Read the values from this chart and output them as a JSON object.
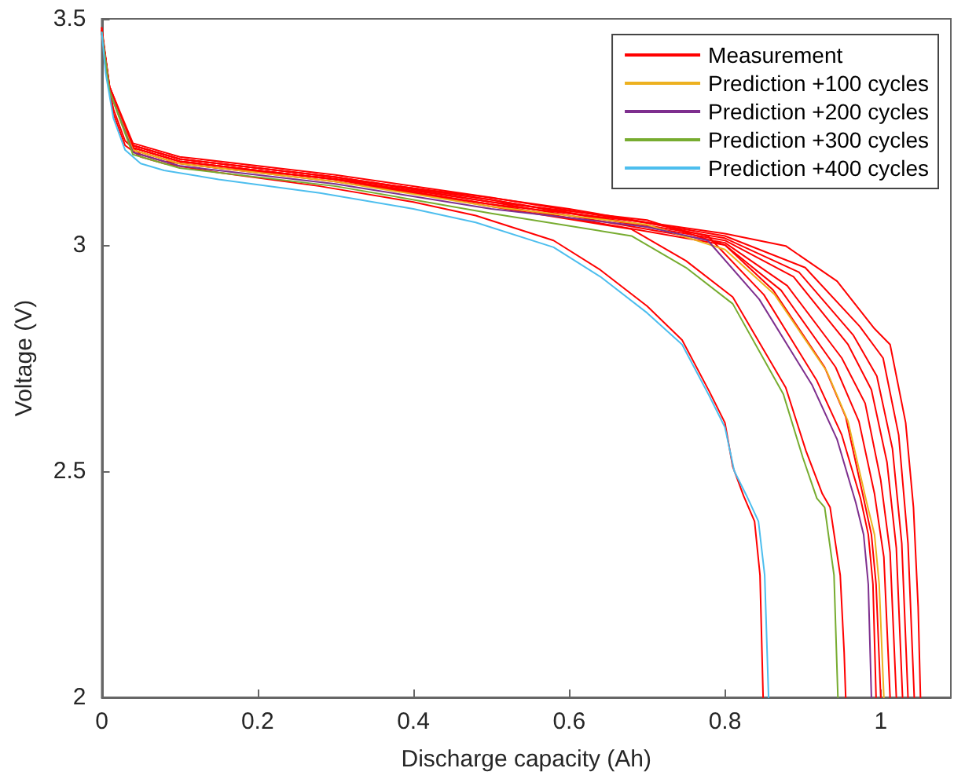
{
  "chart_data": {
    "type": "line",
    "xlabel": "Discharge capacity (Ah)",
    "ylabel": "Voltage (V)",
    "xlim": [
      0,
      1.09
    ],
    "ylim": [
      2,
      3.5
    ],
    "xticks": [
      0,
      0.2,
      0.4,
      0.6,
      0.8,
      1
    ],
    "yticks": [
      2,
      2.5,
      3,
      3.5
    ],
    "grid": false,
    "legend": "top right",
    "marker": "none",
    "line_style": "solid",
    "series": [
      {
        "name": "Measurement",
        "color": "#ff0000",
        "x": [
          0,
          0.005,
          0.015,
          0.03,
          0.05,
          0.08,
          0.15,
          0.28,
          0.4,
          0.48,
          0.58,
          0.64,
          0.7,
          0.745,
          0.78,
          0.8,
          0.81,
          0.824,
          0.838,
          0.845,
          0.849
        ],
        "values": [
          3.47,
          3.39,
          3.29,
          3.22,
          3.195,
          3.18,
          3.16,
          3.13,
          3.095,
          3.065,
          3.01,
          2.945,
          2.865,
          2.79,
          2.676,
          2.607,
          2.51,
          2.445,
          2.389,
          2.27,
          2.0
        ]
      },
      {
        "color": "#ff0000",
        "x": [
          0,
          0.01,
          0.04,
          0.1,
          0.3,
          0.5,
          0.68,
          0.75,
          0.81,
          0.878,
          0.904,
          0.925,
          0.935,
          0.948,
          0.953,
          0.955
        ],
        "values": [
          3.47,
          3.35,
          3.215,
          3.185,
          3.145,
          3.085,
          3.035,
          2.965,
          2.885,
          2.685,
          2.545,
          2.45,
          2.42,
          2.27,
          2.1,
          2.0
        ]
      },
      {
        "color": "#ff0000",
        "x": [
          0,
          0.01,
          0.04,
          0.1,
          0.3,
          0.5,
          0.7,
          0.778,
          0.85,
          0.918,
          0.95,
          0.974,
          0.984,
          0.99,
          0.994
        ],
        "values": [
          3.47,
          3.35,
          3.215,
          3.185,
          3.145,
          3.09,
          3.05,
          3.02,
          2.89,
          2.7,
          2.58,
          2.44,
          2.36,
          2.25,
          2.0
        ]
      },
      {
        "color": "#ff0000",
        "x": [
          0,
          0.01,
          0.04,
          0.1,
          0.3,
          0.5,
          0.7,
          0.8,
          0.862,
          0.928,
          0.955,
          0.978,
          0.988,
          0.994,
          1.0
        ],
        "values": [
          3.475,
          3.345,
          3.22,
          3.19,
          3.15,
          3.095,
          3.055,
          3.0,
          2.9,
          2.73,
          2.62,
          2.44,
          2.36,
          2.25,
          2.0
        ]
      },
      {
        "color": "#ff0000",
        "x": [
          0,
          0.01,
          0.04,
          0.1,
          0.3,
          0.5,
          0.8,
          0.872,
          0.942,
          0.972,
          0.992,
          1.004,
          1.012
        ],
        "values": [
          3.47,
          3.34,
          3.21,
          3.18,
          3.14,
          3.09,
          3.0,
          2.9,
          2.73,
          2.61,
          2.45,
          2.31,
          2.0
        ]
      },
      {
        "color": "#ff0000",
        "x": [
          0,
          0.01,
          0.04,
          0.1,
          0.3,
          0.5,
          0.8,
          0.88,
          0.95,
          0.98,
          1.0,
          1.012,
          1.02
        ],
        "values": [
          3.47,
          3.34,
          3.215,
          3.185,
          3.145,
          3.095,
          3.005,
          2.91,
          2.75,
          2.65,
          2.48,
          2.32,
          2.0
        ]
      },
      {
        "color": "#ff0000",
        "x": [
          0,
          0.01,
          0.04,
          0.1,
          0.3,
          0.5,
          0.8,
          0.888,
          0.958,
          0.988,
          1.008,
          1.02,
          1.028
        ],
        "values": [
          3.475,
          3.345,
          3.22,
          3.19,
          3.15,
          3.1,
          3.01,
          2.93,
          2.78,
          2.68,
          2.52,
          2.33,
          2.0
        ]
      },
      {
        "color": "#ff0000",
        "x": [
          0,
          0.01,
          0.04,
          0.1,
          0.3,
          0.5,
          0.8,
          0.895,
          0.965,
          0.995,
          1.015,
          1.027,
          1.035
        ],
        "values": [
          3.475,
          3.345,
          3.22,
          3.19,
          3.15,
          3.1,
          3.015,
          2.94,
          2.8,
          2.71,
          2.55,
          2.34,
          2.0
        ]
      },
      {
        "color": "#ff0000",
        "x": [
          0,
          0.01,
          0.04,
          0.1,
          0.3,
          0.5,
          0.8,
          0.903,
          0.973,
          1.003,
          1.023,
          1.035,
          1.043
        ],
        "values": [
          3.48,
          3.35,
          3.225,
          3.195,
          3.155,
          3.105,
          3.02,
          2.95,
          2.82,
          2.75,
          2.58,
          2.34,
          2.0
        ]
      },
      {
        "color": "#ff0000",
        "x": [
          0,
          0.005,
          0.015,
          0.03,
          0.05,
          0.08,
          0.15,
          0.28,
          0.48,
          0.6,
          0.7,
          0.8,
          0.878,
          0.944,
          0.992,
          1.012,
          1.032,
          1.042,
          1.048,
          1.051
        ],
        "values": [
          3.48,
          3.39,
          3.3,
          3.23,
          3.2,
          3.185,
          3.17,
          3.15,
          3.109,
          3.08,
          3.05,
          3.025,
          2.998,
          2.92,
          2.815,
          2.78,
          2.607,
          2.42,
          2.2,
          2.0
        ]
      },
      {
        "name": "Prediction +100 cycles",
        "color": "#edb120",
        "x": [
          0,
          0.01,
          0.04,
          0.1,
          0.3,
          0.5,
          0.7,
          0.8,
          0.864,
          0.931,
          0.958,
          0.982,
          0.992,
          0.998,
          1.004
        ],
        "values": [
          3.47,
          3.34,
          3.21,
          3.18,
          3.14,
          3.085,
          3.045,
          2.99,
          2.89,
          2.72,
          2.61,
          2.43,
          2.36,
          2.25,
          2.0
        ]
      },
      {
        "name": "Prediction +200 cycles",
        "color": "#7e2f8e",
        "x": [
          0,
          0.01,
          0.04,
          0.1,
          0.3,
          0.5,
          0.7,
          0.778,
          0.844,
          0.912,
          0.944,
          0.968,
          0.978,
          0.984,
          0.988
        ],
        "values": [
          3.47,
          3.34,
          3.205,
          3.175,
          3.135,
          3.08,
          3.04,
          3.01,
          2.88,
          2.69,
          2.57,
          2.43,
          2.36,
          2.25,
          2.0
        ]
      },
      {
        "name": "Prediction +300 cycles",
        "color": "#77ac30",
        "x": [
          0,
          0.01,
          0.04,
          0.1,
          0.3,
          0.5,
          0.68,
          0.75,
          0.81,
          0.875,
          0.9,
          0.918,
          0.928,
          0.94,
          0.945
        ],
        "values": [
          3.47,
          3.34,
          3.2,
          3.17,
          3.13,
          3.07,
          3.02,
          2.95,
          2.87,
          2.67,
          2.53,
          2.44,
          2.42,
          2.27,
          2.0
        ]
      },
      {
        "name": "Prediction +400 cycles",
        "color": "#4dbeee",
        "x": [
          0,
          0.005,
          0.015,
          0.03,
          0.05,
          0.08,
          0.15,
          0.28,
          0.4,
          0.48,
          0.58,
          0.64,
          0.7,
          0.745,
          0.78,
          0.8,
          0.812,
          0.828,
          0.843,
          0.851,
          0.856
        ],
        "values": [
          3.47,
          3.38,
          3.28,
          3.21,
          3.18,
          3.165,
          3.145,
          3.115,
          3.08,
          3.05,
          2.995,
          2.93,
          2.85,
          2.78,
          2.666,
          2.597,
          2.5,
          2.445,
          2.389,
          2.27,
          2.0
        ]
      }
    ]
  }
}
